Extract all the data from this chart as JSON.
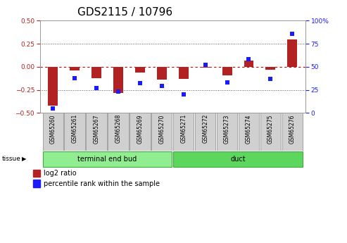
{
  "title": "GDS2115 / 10796",
  "samples": [
    "GSM65260",
    "GSM65261",
    "GSM65267",
    "GSM65268",
    "GSM65269",
    "GSM65270",
    "GSM65271",
    "GSM65272",
    "GSM65273",
    "GSM65274",
    "GSM65275",
    "GSM65276"
  ],
  "log2_ratio": [
    -0.42,
    -0.04,
    -0.12,
    -0.28,
    -0.06,
    -0.14,
    -0.13,
    -0.01,
    -0.09,
    0.07,
    -0.03,
    0.3
  ],
  "percentile_rank": [
    5,
    38,
    27,
    23,
    32,
    29,
    20,
    52,
    33,
    58,
    37,
    86
  ],
  "groups": [
    {
      "label": "terminal end bud",
      "start": 0,
      "end": 6,
      "color": "#90ee90"
    },
    {
      "label": "duct",
      "start": 6,
      "end": 12,
      "color": "#5cd65c"
    }
  ],
  "ylim_left": [
    -0.5,
    0.5
  ],
  "ylim_right": [
    0,
    100
  ],
  "yticks_left": [
    -0.5,
    -0.25,
    0.0,
    0.25,
    0.5
  ],
  "yticks_right": [
    0,
    25,
    50,
    75,
    100
  ],
  "bar_color_red": "#b22222",
  "bar_color_blue": "#1a1aff",
  "dotted_line_color": "#555555",
  "zero_line_color": "#cc0000",
  "bg_color": "#ffffff",
  "sample_box_color": "#d0d0d0",
  "legend_red_label": "log2 ratio",
  "legend_blue_label": "percentile rank within the sample",
  "tissue_label": "tissue",
  "title_fontsize": 11,
  "tick_fontsize": 6.5,
  "sample_fontsize": 5.5
}
